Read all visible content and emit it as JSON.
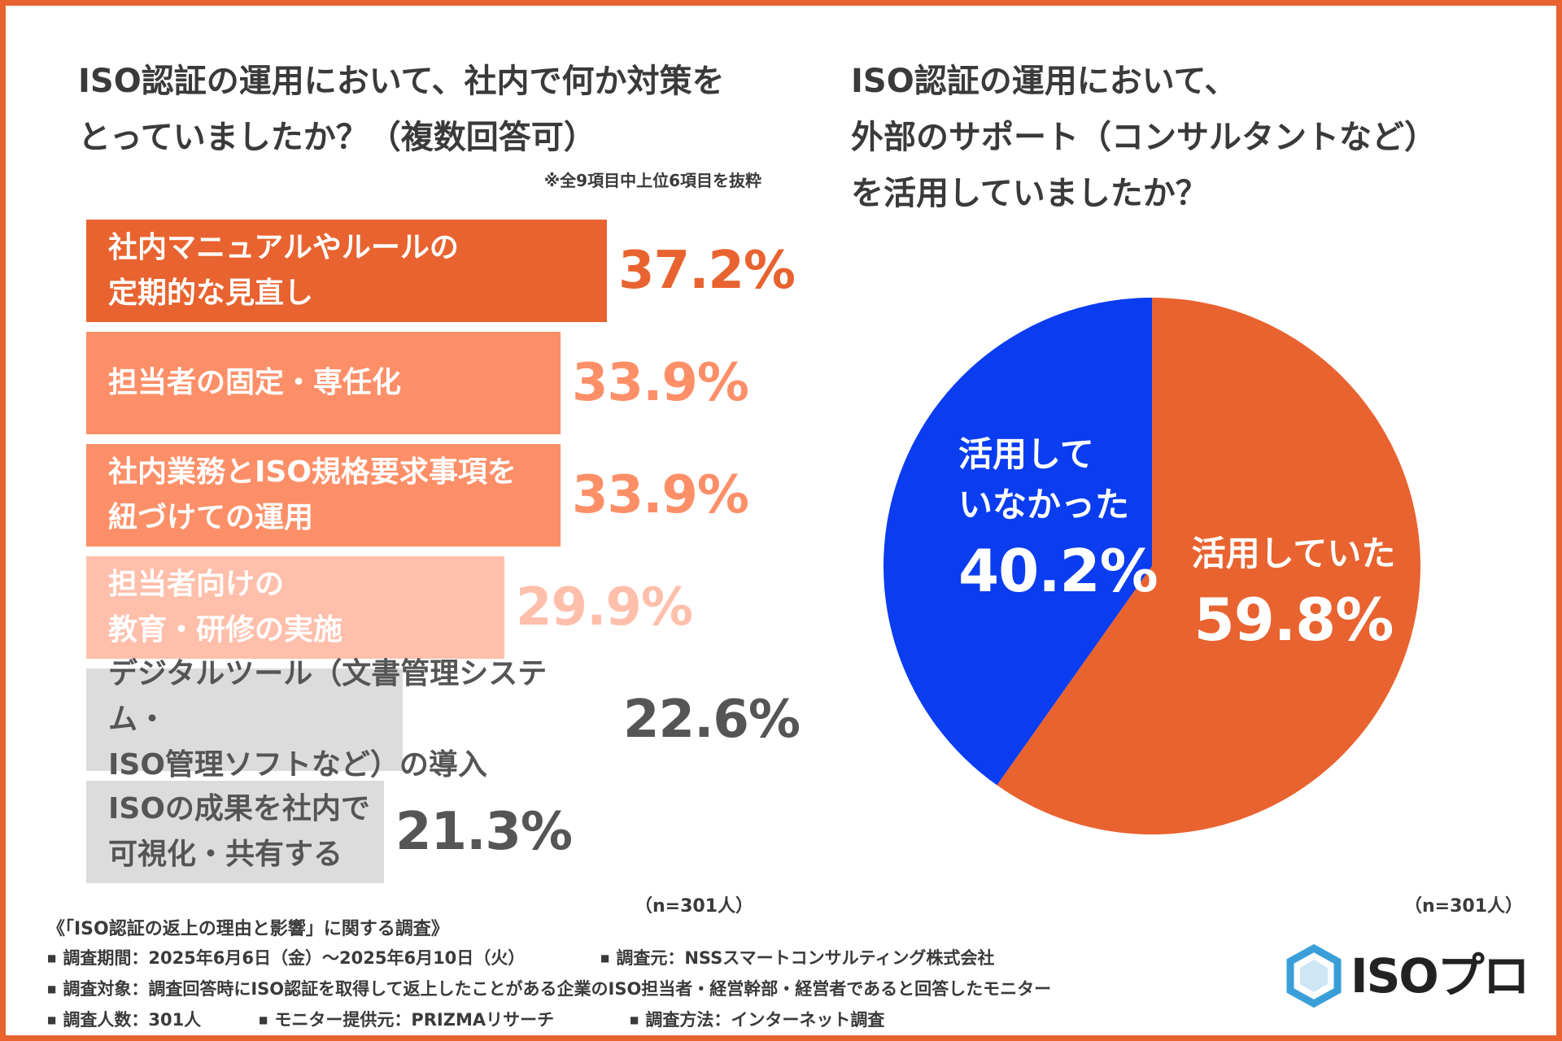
{
  "left_chart": {
    "title": "ISO認証の運用において、社内で何か対策を\nとっていましたか？（複数回答可）",
    "note": "※全9項目中上位6項目を抜粋",
    "sample": "（n=301人）"
  },
  "right_chart": {
    "title": "ISO認証の運用において、\n外部のサポート（コンサルタントなど）\nを活用していましたか？",
    "sample": "（n=301人）"
  },
  "chart_data": [
    {
      "type": "bar",
      "orientation": "horizontal",
      "title": "ISO認証の運用において、社内で何か対策をとっていましたか？（複数回答可）",
      "unit": "%",
      "categories": [
        "社内マニュアルやルールの\n定期的な見直し",
        "担当者の固定・専任化",
        "社内業務とISO規格要求事項を\n紐づけての運用",
        "担当者向けの\n教育・研修の実施",
        "デジタルツール（文書管理システム・\nISO管理ソフトなど）の導入",
        "ISOの成果を社内で\n可視化・共有する"
      ],
      "values": [
        37.2,
        33.9,
        33.9,
        29.9,
        22.6,
        21.3
      ],
      "value_labels": [
        "37.2%",
        "33.9%",
        "33.9%",
        "29.9%",
        "22.6%",
        "21.3%"
      ],
      "bar_colors": [
        "#e8632f",
        "#fd8f68",
        "#fd8f68",
        "#ffbfab",
        "#dcdcdc",
        "#dcdcdc"
      ],
      "label_colors": [
        "#ffffff",
        "#ffffff",
        "#ffffff",
        "#ffffff",
        "#555555",
        "#555555"
      ],
      "value_colors": [
        "#e8632f",
        "#fd8f68",
        "#fd8f68",
        "#ffbfab",
        "#555555",
        "#555555"
      ]
    },
    {
      "type": "pie",
      "title": "ISO認証の運用において、外部のサポート（コンサルタントなど）を活用していましたか？",
      "slices": [
        {
          "label": "活用していた",
          "value": 59.8,
          "value_label": "59.8%",
          "color": "#e8632f"
        },
        {
          "label": "活用して\nいなかった",
          "value": 40.2,
          "value_label": "40.2%",
          "color": "#0a3cf0"
        }
      ]
    }
  ],
  "footer": {
    "title": "《「ISO認証の返上の理由と影響」に関する調査》",
    "period": "調査期間：2025年6月6日（金）～2025年6月10日（火）",
    "source": "調査元：NSSスマートコンサルティング株式会社",
    "target": "調査対象：調査回答時にISO認証を取得して返上したことがある企業のISO担当者・経営幹部・経営者であると回答したモニター",
    "count": "調査人数：301人",
    "provider": "モニター提供元：PRIZMAリサーチ",
    "method": "調査方法：インターネット調査"
  },
  "logo": {
    "text": "ISOプロ",
    "icon": "hexagon-logo-icon",
    "color": "#3a9fd8"
  }
}
